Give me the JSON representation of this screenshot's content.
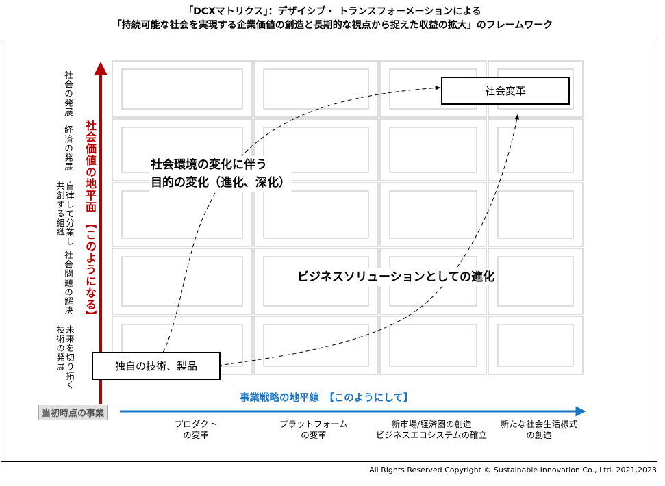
{
  "title_line1": "「DCXマトリクス」：デザイシブ・ トランスフォーメーションによる",
  "title_line2": "「持続可能な社会を実現する企業価値の創造と長期的な視点から捉えた収益の拡大」のフレームワーク",
  "y_axis": {
    "label": "社会価値の地平面 【このようになる】",
    "rows": [
      {
        "line1": "社会の発展",
        "line2": ""
      },
      {
        "line1": "経済の発展",
        "line2": ""
      },
      {
        "line1": "自律して分業し",
        "line2": "共創する組織"
      },
      {
        "line1": "社会問題の解決",
        "line2": ""
      },
      {
        "line1": "未来を切り拓く",
        "line2": "技術の発展"
      }
    ],
    "color": "#b30000"
  },
  "x_axis": {
    "label": "事業戦略の地平線　【このようにして】",
    "origin": "当初時点の事業",
    "columns": [
      {
        "line1": "プロダクト",
        "line2": "の変革"
      },
      {
        "line1": "プラットフォーム",
        "line2": "の変革"
      },
      {
        "line1": "新市場/経済圏の創造",
        "line2": "ビジネスエコシステムの確立"
      },
      {
        "line1": "新たな社会生活様式",
        "line2": "の創造"
      }
    ],
    "color": "#1a74c4"
  },
  "boxes": {
    "start": "独自の技術、製品",
    "goal": "社会変革"
  },
  "annotations": {
    "purpose_line1": "社会環境の変化に伴う",
    "purpose_line2": "目的の変化（進化、深化）",
    "business": "ビジネスソリューションとしての進化"
  },
  "copyright": "All Rights Reserved Copyright © Sustainable Innovation Co., Ltd.  2021,2023"
}
